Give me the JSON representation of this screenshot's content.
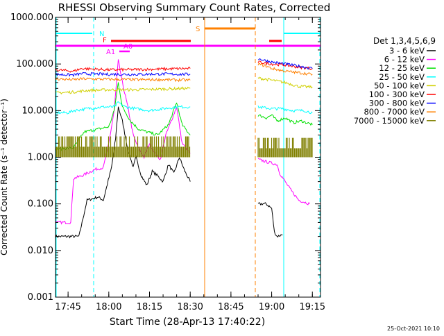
{
  "chart_data": {
    "type": "line",
    "title": "RHESSI Observing Summary Count Rates, Corrected",
    "xlabel": "Start Time (28-Apr-13 17:40:22)",
    "ylabel": "Corrected Count Rate (s⁻¹ detector⁻¹)",
    "yscale": "log",
    "ylim": [
      0.001,
      1000
    ],
    "xlim": [
      "17:40:22",
      "19:18:00"
    ],
    "x_tick_labels": [
      "17:45",
      "18:00",
      "18:15",
      "18:30",
      "18:45",
      "19:00",
      "19:15"
    ],
    "y_tick_labels": [
      "0.001",
      "0.010",
      "0.100",
      "1.000",
      "10.000",
      "100.000",
      "1000.000"
    ],
    "legend_title": "Det 1,3,4,5,6,9",
    "legend_position": "right",
    "timestamp": "25-Oct-2021 10:10",
    "series": [
      {
        "name": "3 - 6 keV",
        "color": "#000000",
        "segments": [
          {
            "x": [
              "17:40:22",
              "17:45:00",
              "17:49:00",
              "17:52:00",
              "17:56:00",
              "17:58:00",
              "18:01:00",
              "18:02:30",
              "18:03:30",
              "18:05:00",
              "18:07:00",
              "18:09:00",
              "18:10:00",
              "18:12:00",
              "18:14:00",
              "18:16:00",
              "18:18:00",
              "18:20:00",
              "18:22:00",
              "18:24:00",
              "18:26:00",
              "18:28:00",
              "18:30:00"
            ],
            "y": [
              null,
              0.02,
              0.02,
              0.12,
              0.14,
              0.12,
              0.6,
              2.5,
              12,
              6,
              1.5,
              0.6,
              1.0,
              0.4,
              0.25,
              0.5,
              0.4,
              0.3,
              0.7,
              0.45,
              1.0,
              0.5,
              0.3
            ]
          },
          {
            "x": [
              "18:55:00",
              "18:58:00",
              "19:00:00",
              "19:01:00",
              "19:02:00",
              "19:04:00"
            ],
            "y": [
              0.1,
              0.1,
              0.08,
              0.025,
              0.02,
              0.022
            ]
          }
        ]
      },
      {
        "name": "6 - 12 keV",
        "color": "#ff00ff",
        "segments": [
          {
            "x": [
              "17:40:22",
              "17:46:00",
              "17:47:00",
              "17:50:00",
              "17:55:00",
              "17:58:00",
              "18:00:00",
              "18:02:00",
              "18:03:30",
              "18:05:00",
              "18:07:00",
              "18:09:00",
              "18:11:00",
              "18:13:00",
              "18:15:00",
              "18:17:00",
              "18:19:00",
              "18:21:00",
              "18:23:00",
              "18:25:00",
              "18:27:00",
              "18:30:00"
            ],
            "y": [
              0.04,
              0.04,
              0.35,
              0.4,
              0.55,
              0.6,
              2.0,
              10,
              120,
              40,
              12,
              3,
              1.5,
              1.0,
              2.0,
              1.2,
              0.9,
              3,
              6,
              12,
              2,
              1.2
            ]
          },
          {
            "x": [
              "18:55:00",
              "18:58:00",
              "19:02:00",
              "19:03:00",
              "19:07:00",
              "19:10:00",
              "19:14:00"
            ],
            "y": [
              0.9,
              0.8,
              0.7,
              0.45,
              0.2,
              0.12,
              0.1
            ]
          }
        ]
      },
      {
        "name": "12 - 25 keV",
        "color": "#00e000",
        "segments": [
          {
            "x": [
              "17:40:22",
              "17:47:00",
              "17:51:00",
              "17:56:00",
              "18:00:00",
              "18:02:00",
              "18:03:30",
              "18:05:00",
              "18:08:00",
              "18:11:00",
              "18:14:00",
              "18:18:00",
              "18:22:00",
              "18:25:00",
              "18:27:00",
              "18:30:00"
            ],
            "y": [
              1.5,
              1.6,
              3.5,
              4.0,
              4.5,
              10,
              40,
              12,
              6,
              4,
              3.5,
              3,
              5,
              15,
              5,
              3
            ]
          },
          {
            "x": [
              "18:55:00",
              "18:58:00",
              "19:00:00",
              "19:02:00",
              "19:05:00",
              "19:08:00",
              "19:11:00",
              "19:15:00"
            ],
            "y": [
              8,
              7,
              8,
              6,
              7,
              5.5,
              6,
              5
            ]
          }
        ]
      },
      {
        "name": "25 - 50 keV",
        "color": "#00ffff",
        "segments": [
          {
            "x": [
              "17:40:22",
              "17:45:00",
              "17:47:00",
              "17:52:00",
              "17:58:00",
              "18:02:00",
              "18:03:30",
              "18:06:00",
              "18:10:00",
              "18:15:00",
              "18:20:00",
              "18:25:00",
              "18:30:00"
            ],
            "y": [
              9,
              9,
              10,
              11,
              12,
              12,
              15,
              12,
              11,
              10,
              11,
              12,
              12
            ]
          },
          {
            "x": [
              "18:55:00",
              "19:00:00",
              "19:04:00",
              "19:08:00",
              "19:12:00",
              "19:15:00"
            ],
            "y": [
              12,
              11,
              11,
              10,
              10,
              9
            ]
          }
        ]
      },
      {
        "name": "50 - 100 keV",
        "color": "#d0d000",
        "segments": [
          {
            "x": [
              "17:40:22",
              "17:47:00",
              "17:52:00",
              "18:00:00",
              "18:10:00",
              "18:20:00",
              "18:30:00"
            ],
            "y": [
              24,
              25,
              27,
              28,
              28,
              29,
              30
            ]
          },
          {
            "x": [
              "18:55:00",
              "19:00:00",
              "19:05:00",
              "19:10:00",
              "19:15:00"
            ],
            "y": [
              50,
              45,
              40,
              33,
              32
            ]
          }
        ]
      },
      {
        "name": "100 - 300 keV",
        "color": "#ff0000",
        "segments": [
          {
            "x": [
              "17:40:22",
              "17:47:00",
              "17:50:00",
              "18:00:00",
              "18:10:00",
              "18:20:00",
              "18:30:00"
            ],
            "y": [
              75,
              70,
              80,
              75,
              76,
              78,
              80
            ]
          },
          {
            "x": [
              "18:55:00",
              "19:00:00",
              "19:05:00",
              "19:10:00",
              "19:15:00"
            ],
            "y": [
              110,
              100,
              95,
              85,
              80
            ]
          }
        ]
      },
      {
        "name": "300 - 800 keV",
        "color": "#0000ff",
        "segments": [
          {
            "x": [
              "17:40:22",
              "17:47:00",
              "17:50:00",
              "18:00:00",
              "18:10:00",
              "18:20:00",
              "18:30:00"
            ],
            "y": [
              60,
              58,
              62,
              60,
              60,
              61,
              60
            ]
          },
          {
            "x": [
              "18:55:00",
              "19:00:00",
              "19:05:00",
              "19:10:00",
              "19:15:00"
            ],
            "y": [
              130,
              110,
              100,
              90,
              80
            ]
          }
        ]
      },
      {
        "name": "800 - 7000 keV",
        "color": "#ff8000",
        "segments": [
          {
            "x": [
              "17:40:22",
              "17:47:00",
              "17:50:00",
              "18:00:00",
              "18:10:00",
              "18:20:00",
              "18:30:00"
            ],
            "y": [
              48,
              46,
              48,
              47,
              46,
              46,
              45
            ]
          },
          {
            "x": [
              "18:55:00",
              "18:58:00",
              "19:00:00",
              "19:05:00",
              "19:10:00",
              "19:15:00"
            ],
            "y": [
              100,
              90,
              80,
              70,
              65,
              60
            ]
          }
        ]
      },
      {
        "name": "7000 - 15000 keV",
        "color": "#808000",
        "segments": [
          {
            "x": [
              "17:40:22",
              "18:30:00"
            ],
            "y_band": [
              1.0,
              2.8
            ]
          },
          {
            "x": [
              "18:55:00",
              "19:15:00"
            ],
            "y_band": [
              1.0,
              2.6
            ]
          }
        ]
      }
    ],
    "flags": [
      {
        "label": "N",
        "color": "#00ffff"
      },
      {
        "label": "F",
        "color": "#ff0000"
      },
      {
        "label": "A0",
        "color": "#ff00ff"
      },
      {
        "label": "A1",
        "color": "#ff00ff"
      },
      {
        "label": "S",
        "color": "#ff8000"
      }
    ]
  }
}
